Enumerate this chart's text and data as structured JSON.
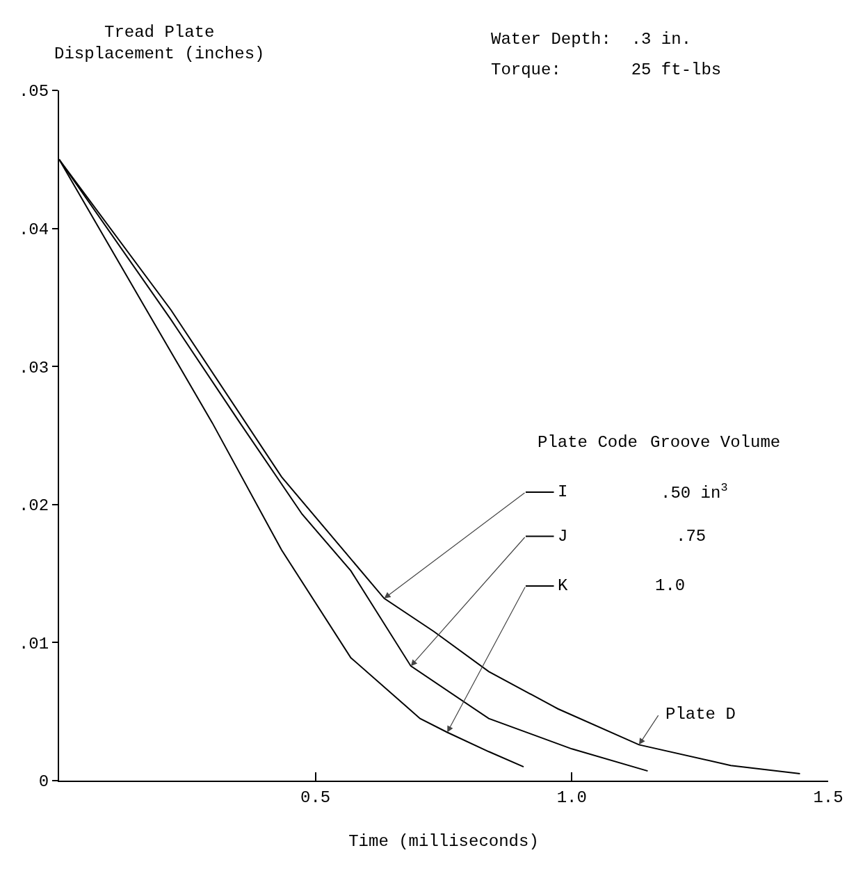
{
  "chart_data": {
    "type": "line",
    "title": "Water Depth:  .3 in.",
    "subtitle": "Torque:       25 ft-lbs",
    "xlabel": "Time (milliseconds)",
    "ylabel": "Tread Plate Displacement (inches)",
    "xlim": [
      0,
      1.5
    ],
    "ylim": [
      0,
      0.05
    ],
    "xticks": [
      0.5,
      {
        "value": 1,
        "label": "1.0"
      },
      1.5
    ],
    "yticks": [
      {
        "value": 0,
        "label": "0"
      },
      {
        "value": 0.01,
        "label": ".01"
      },
      {
        "value": 0.02,
        "label": ".02"
      },
      {
        "value": 0.03,
        "label": ".03"
      },
      {
        "value": 0.04,
        "label": ".04"
      },
      {
        "value": 0.05,
        "label": ".05"
      }
    ],
    "grid": false,
    "legend": "right",
    "marker": "none",
    "line_style": "solid",
    "series": [
      {
        "name": "I",
        "color": "#000000",
        "x": [
          0,
          0.218,
          0.434,
          0.634,
          0.731,
          0.838,
          0.973,
          1.131,
          1.31,
          1.445
        ],
        "values": [
          0.045,
          0.0341,
          0.022,
          0.0132,
          0.0108,
          0.0079,
          0.0052,
          0.0026,
          0.0011,
          0.0005
        ]
      },
      {
        "name": "J",
        "color": "#000000",
        "x": [
          0,
          0.218,
          0.353,
          0.474,
          0.569,
          0.686,
          0.838,
          1.0,
          1.148
        ],
        "values": [
          0.045,
          0.0334,
          0.0259,
          0.0193,
          0.0152,
          0.0083,
          0.0045,
          0.0023,
          0.0007
        ]
      },
      {
        "name": "K",
        "color": "#000000",
        "x": [
          0,
          0.164,
          0.299,
          0.434,
          0.569,
          0.704,
          0.757,
          0.838,
          0.906
        ],
        "values": [
          0.045,
          0.0345,
          0.0259,
          0.0167,
          0.0089,
          0.0045,
          0.0035,
          0.0021,
          0.001
        ]
      }
    ],
    "annotations": [
      {
        "text": "Plate D",
        "x": 1.131,
        "y": 0.0026
      },
      "Plate Code",
      "Groove Volume",
      ".50 in$^{3}$",
      ".75",
      "1.0"
    ]
  }
}
